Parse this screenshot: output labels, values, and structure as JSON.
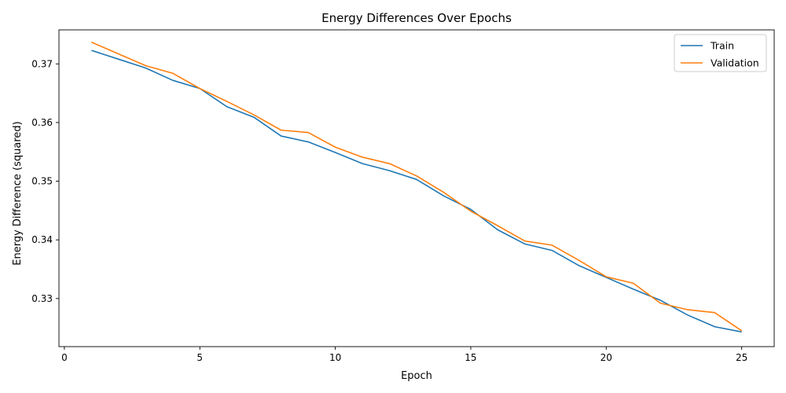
{
  "chart_data": {
    "type": "line",
    "title": "Energy Differences Over Epochs",
    "xlabel": "Epoch",
    "ylabel": "Energy Difference (squared)",
    "xlim": [
      -0.2,
      26.2
    ],
    "ylim": [
      0.3218,
      0.3758
    ],
    "xticks": [
      0,
      5,
      10,
      15,
      20,
      25
    ],
    "yticks": [
      0.33,
      0.34,
      0.35,
      0.36,
      0.37
    ],
    "ytick_labels": [
      "0.33",
      "0.34",
      "0.35",
      "0.36",
      "0.37"
    ],
    "grid": false,
    "legend_position": "top-right",
    "x": [
      1,
      2,
      3,
      4,
      5,
      6,
      7,
      8,
      9,
      10,
      11,
      12,
      13,
      14,
      15,
      16,
      17,
      18,
      19,
      20,
      21,
      22,
      23,
      24,
      25
    ],
    "series": [
      {
        "name": "Train",
        "color": "#1f77b4",
        "values": [
          0.3723,
          0.3708,
          0.3693,
          0.3672,
          0.3658,
          0.3627,
          0.3609,
          0.3577,
          0.3567,
          0.3549,
          0.353,
          0.3518,
          0.3503,
          0.3475,
          0.3452,
          0.3417,
          0.3393,
          0.3382,
          0.3356,
          0.3336,
          0.3316,
          0.3297,
          0.3272,
          0.3252,
          0.3243
        ]
      },
      {
        "name": "Validation",
        "color": "#ff7f0e",
        "values": [
          0.3737,
          0.3717,
          0.3697,
          0.3684,
          0.3658,
          0.3636,
          0.3613,
          0.3587,
          0.3583,
          0.3558,
          0.3541,
          0.353,
          0.3509,
          0.3481,
          0.3449,
          0.3424,
          0.3398,
          0.3391,
          0.3365,
          0.3337,
          0.3326,
          0.3292,
          0.3281,
          0.3276,
          0.3245
        ]
      }
    ]
  }
}
